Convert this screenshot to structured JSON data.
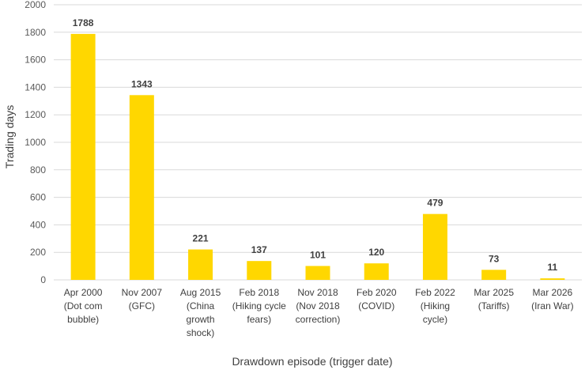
{
  "chart_data": {
    "type": "bar",
    "categories": [
      [
        "Apr 2000",
        "(Dot com",
        "bubble)"
      ],
      [
        "Nov 2007",
        "(GFC)"
      ],
      [
        "Aug 2015",
        "(China",
        "growth",
        "shock)"
      ],
      [
        "Feb 2018",
        "(Hiking cycle",
        "fears)"
      ],
      [
        "Nov 2018",
        "(Nov 2018",
        "correction)"
      ],
      [
        "Feb 2020",
        "(COVID)"
      ],
      [
        "Feb 2022",
        "(Hiking",
        "cycle)"
      ],
      [
        "Mar 2025",
        "(Tariffs)"
      ],
      [
        "Mar 2026",
        "(Iran War)"
      ]
    ],
    "values": [
      1788,
      1343,
      221,
      137,
      101,
      120,
      479,
      73,
      11
    ],
    "xlabel": "Drawdown episode (trigger date)",
    "ylabel": "Trading  days",
    "ylim": [
      0,
      2000
    ],
    "yticks": [
      0,
      200,
      400,
      600,
      800,
      1000,
      1200,
      1400,
      1600,
      1800,
      2000
    ],
    "data_labels": true,
    "grid": true,
    "bar_color": "#FFD700",
    "grid_color": "#D9D9D9",
    "legend": "none"
  }
}
